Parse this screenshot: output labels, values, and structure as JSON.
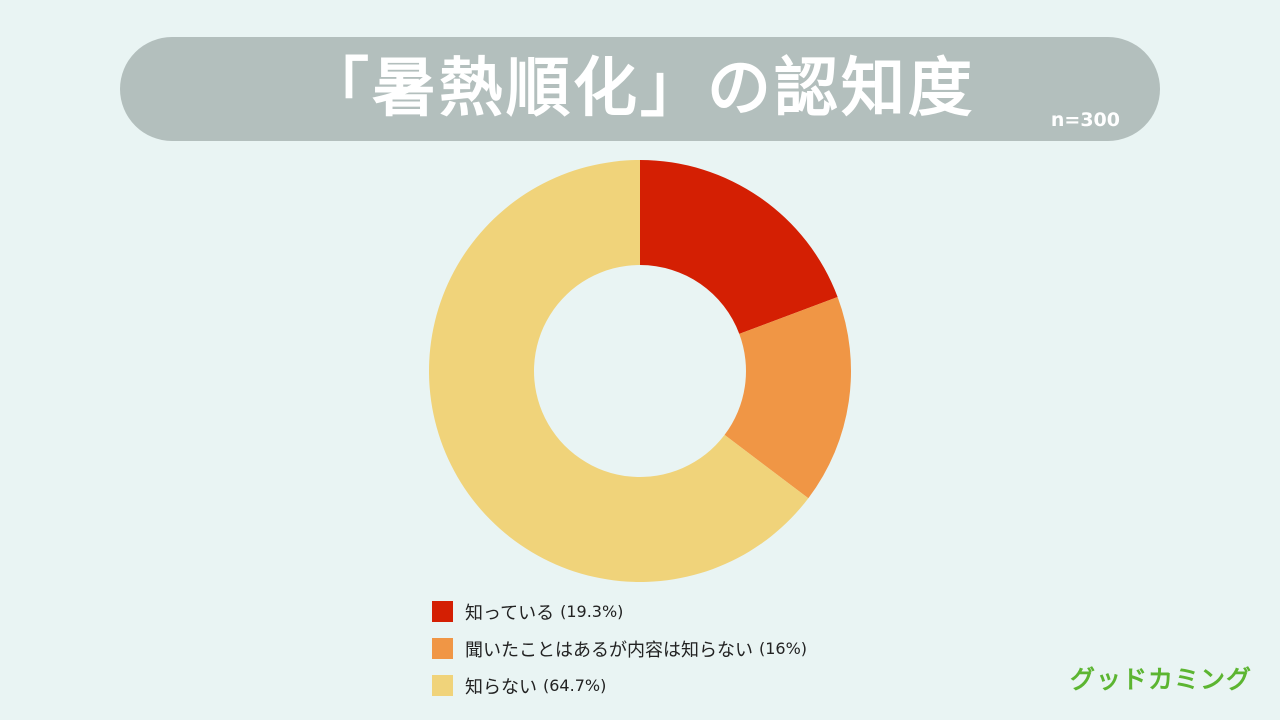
{
  "header": {
    "title": "「暑熱順化」の認知度",
    "sample_size": "n=300"
  },
  "chart_data": {
    "type": "pie",
    "style": "donut",
    "title": "「暑熱順化」の認知度",
    "categories": [
      "知っている",
      "聞いたことはあるが内容は知らない",
      "知らない"
    ],
    "values": [
      19.3,
      16,
      64.7
    ],
    "value_labels": [
      "(19.3%)",
      "(16%)",
      "(64.7%)"
    ],
    "unit": "%",
    "colors": [
      "#d41f03",
      "#f09645",
      "#f0d37a"
    ],
    "legend_position": "bottom"
  },
  "logo": {
    "text": "グッドカミング",
    "color": "#5cb531",
    "accent_color": "#f0b400"
  },
  "theme": {
    "background": "#e9f4f3",
    "banner": "#b3bfbd"
  }
}
